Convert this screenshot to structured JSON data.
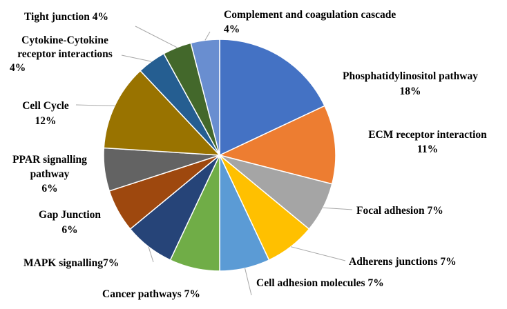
{
  "chart_data": {
    "type": "pie",
    "title": "",
    "start_angle_deg": 0,
    "direction": "clockwise",
    "slices": [
      {
        "label": "Phosphatidylinositol pathway",
        "value": 18,
        "value_label": "18%",
        "color": "#4472C4"
      },
      {
        "label": "ECM receptor interaction",
        "value": 11,
        "value_label": "11%",
        "color": "#ED7D31"
      },
      {
        "label": "Focal adhesion",
        "value": 7,
        "value_label": "7%",
        "color": "#A5A5A5"
      },
      {
        "label": "Adherens junctions",
        "value": 7,
        "value_label": "7%",
        "color": "#FFC000"
      },
      {
        "label": "Cell adhesion molecules",
        "value": 7,
        "value_label": "7%",
        "color": "#5B9BD5"
      },
      {
        "label": "Cancer pathways",
        "value": 7,
        "value_label": "7%",
        "color": "#70AD47"
      },
      {
        "label": "MAPK signalling",
        "value": 7,
        "value_label": "7%",
        "color": "#264478"
      },
      {
        "label": "Gap Junction",
        "value": 6,
        "value_label": "6%",
        "color": "#9E480E"
      },
      {
        "label": "PPAR signalling pathway",
        "value": 6,
        "value_label": "6%",
        "color": "#636363"
      },
      {
        "label": "Cell Cycle",
        "value": 12,
        "value_label": "12%",
        "color": "#997300"
      },
      {
        "label": "Cytokine-Cytokine receptor interactions",
        "value": 4,
        "value_label": "4%",
        "color": "#255E91"
      },
      {
        "label": "Tight junction",
        "value": 4,
        "value_label": "4%",
        "color": "#43682B"
      },
      {
        "label": "Complement and coagulation cascade",
        "value": 4,
        "value_label": "4%",
        "color": "#698ED0"
      }
    ]
  }
}
